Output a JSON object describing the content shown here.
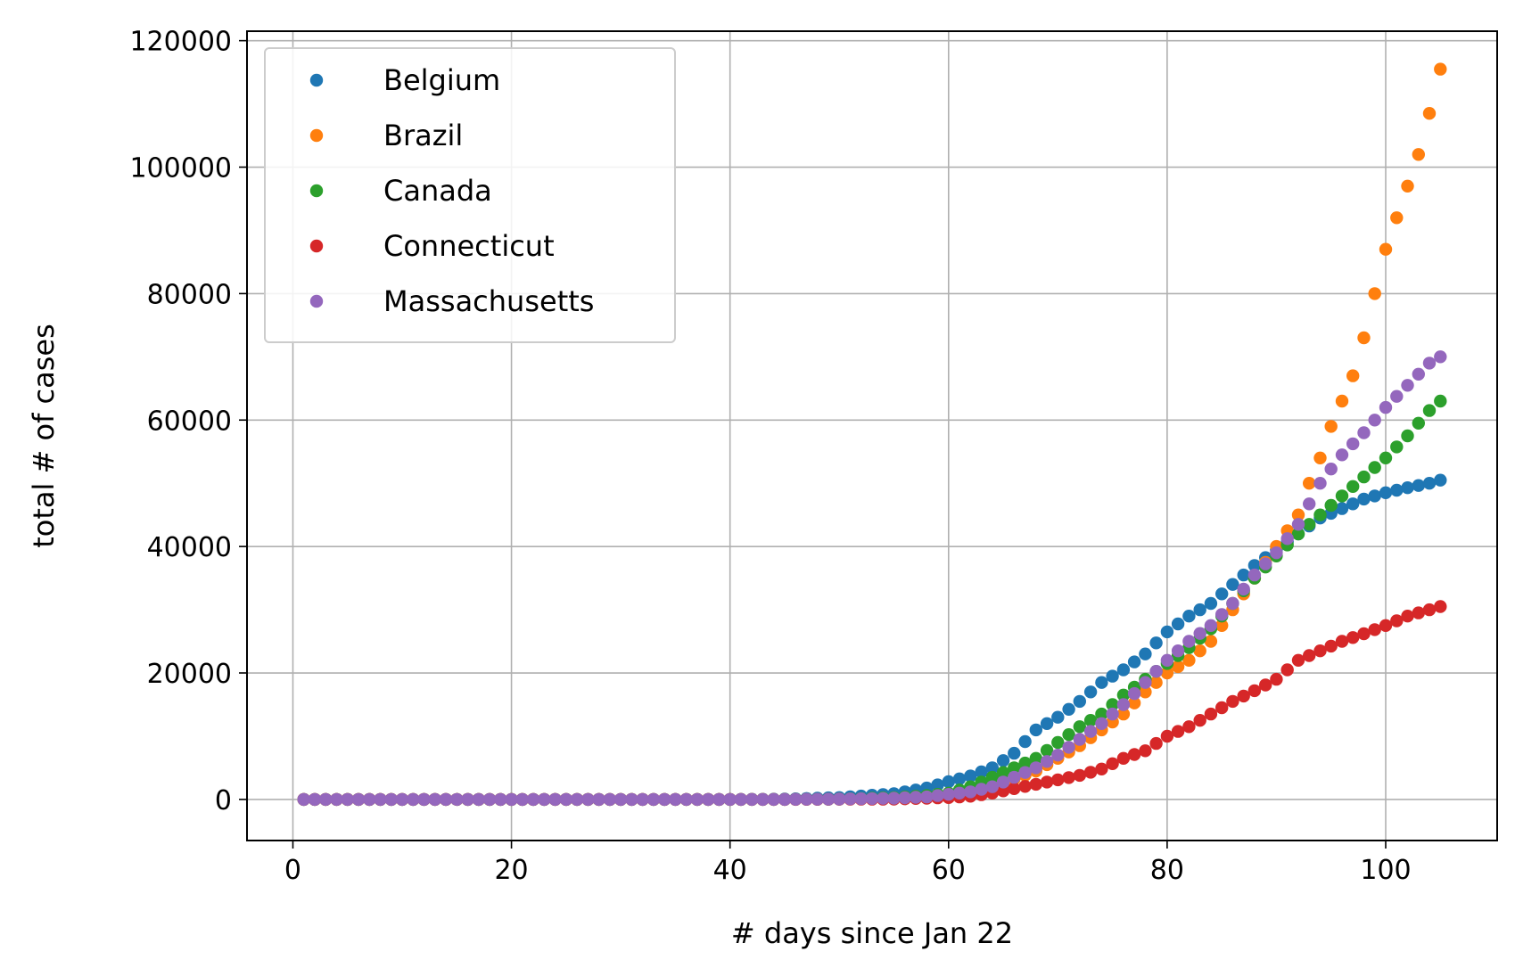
{
  "chart_data": {
    "type": "scatter",
    "xlabel": "# days since Jan 22",
    "ylabel": "total # of cases",
    "xlim": [
      -4.2,
      110.2
    ],
    "ylim": [
      -6500,
      121500
    ],
    "xticks": [
      0,
      20,
      40,
      60,
      80,
      100
    ],
    "yticks": [
      0,
      20000,
      40000,
      60000,
      80000,
      100000,
      120000
    ],
    "grid": true,
    "legend_position": "top-left",
    "series": [
      {
        "name": "Belgium",
        "color": "#1f77b4",
        "anchors": [
          [
            1,
            0
          ],
          [
            40,
            0
          ],
          [
            45,
            50
          ],
          [
            50,
            300
          ],
          [
            55,
            900
          ],
          [
            58,
            1800
          ],
          [
            60,
            2800
          ],
          [
            62,
            3700
          ],
          [
            64,
            5000
          ],
          [
            66,
            7300
          ],
          [
            68,
            11000
          ],
          [
            70,
            13000
          ],
          [
            72,
            15500
          ],
          [
            74,
            18500
          ],
          [
            76,
            20500
          ],
          [
            78,
            23000
          ],
          [
            80,
            26500
          ],
          [
            82,
            29000
          ],
          [
            84,
            31000
          ],
          [
            86,
            34000
          ],
          [
            88,
            37000
          ],
          [
            90,
            39500
          ],
          [
            92,
            42000
          ],
          [
            94,
            44500
          ],
          [
            96,
            46000
          ],
          [
            98,
            47500
          ],
          [
            100,
            48500
          ],
          [
            102,
            49300
          ],
          [
            104,
            50000
          ],
          [
            105,
            50500
          ]
        ]
      },
      {
        "name": "Brazil",
        "color": "#ff7f0e",
        "anchors": [
          [
            1,
            0
          ],
          [
            45,
            0
          ],
          [
            50,
            50
          ],
          [
            55,
            200
          ],
          [
            58,
            500
          ],
          [
            60,
            800
          ],
          [
            62,
            1200
          ],
          [
            64,
            2000
          ],
          [
            66,
            3200
          ],
          [
            68,
            4500
          ],
          [
            70,
            6500
          ],
          [
            72,
            8500
          ],
          [
            74,
            11000
          ],
          [
            76,
            13500
          ],
          [
            78,
            17000
          ],
          [
            80,
            20000
          ],
          [
            82,
            22000
          ],
          [
            84,
            25000
          ],
          [
            86,
            30000
          ],
          [
            88,
            35000
          ],
          [
            90,
            40000
          ],
          [
            92,
            45000
          ],
          [
            93,
            50000
          ],
          [
            94,
            54000
          ],
          [
            95,
            59000
          ],
          [
            96,
            63000
          ],
          [
            97,
            67000
          ],
          [
            98,
            73000
          ],
          [
            99,
            80000
          ],
          [
            100,
            87000
          ],
          [
            101,
            92000
          ],
          [
            102,
            97000
          ],
          [
            103,
            102000
          ],
          [
            104,
            108500
          ],
          [
            105,
            115500
          ]
        ]
      },
      {
        "name": "Canada",
        "color": "#2ca02c",
        "anchors": [
          [
            1,
            0
          ],
          [
            45,
            0
          ],
          [
            50,
            50
          ],
          [
            55,
            300
          ],
          [
            58,
            600
          ],
          [
            60,
            1000
          ],
          [
            62,
            2000
          ],
          [
            64,
            3500
          ],
          [
            66,
            5000
          ],
          [
            68,
            6500
          ],
          [
            70,
            9000
          ],
          [
            72,
            11500
          ],
          [
            74,
            13500
          ],
          [
            76,
            16500
          ],
          [
            78,
            19000
          ],
          [
            80,
            21500
          ],
          [
            82,
            24000
          ],
          [
            84,
            27000
          ],
          [
            86,
            31000
          ],
          [
            88,
            35000
          ],
          [
            90,
            38500
          ],
          [
            92,
            42000
          ],
          [
            94,
            45000
          ],
          [
            96,
            48000
          ],
          [
            98,
            51000
          ],
          [
            100,
            54000
          ],
          [
            102,
            57500
          ],
          [
            104,
            61500
          ],
          [
            105,
            63000
          ]
        ]
      },
      {
        "name": "Connecticut",
        "color": "#d62728",
        "anchors": [
          [
            1,
            0
          ],
          [
            45,
            0
          ],
          [
            55,
            50
          ],
          [
            60,
            300
          ],
          [
            62,
            500
          ],
          [
            64,
            1000
          ],
          [
            66,
            1700
          ],
          [
            68,
            2400
          ],
          [
            70,
            3100
          ],
          [
            72,
            3800
          ],
          [
            74,
            4800
          ],
          [
            76,
            6500
          ],
          [
            78,
            7700
          ],
          [
            80,
            10000
          ],
          [
            82,
            11500
          ],
          [
            84,
            13500
          ],
          [
            86,
            15500
          ],
          [
            88,
            17200
          ],
          [
            90,
            19000
          ],
          [
            92,
            22000
          ],
          [
            94,
            23500
          ],
          [
            96,
            25000
          ],
          [
            98,
            26200
          ],
          [
            100,
            27500
          ],
          [
            102,
            29000
          ],
          [
            104,
            30000
          ],
          [
            105,
            30500
          ]
        ]
      },
      {
        "name": "Massachusetts",
        "color": "#9467bd",
        "anchors": [
          [
            1,
            0
          ],
          [
            45,
            0
          ],
          [
            50,
            50
          ],
          [
            55,
            200
          ],
          [
            58,
            400
          ],
          [
            60,
            800
          ],
          [
            62,
            1200
          ],
          [
            64,
            2000
          ],
          [
            66,
            3500
          ],
          [
            68,
            5000
          ],
          [
            70,
            7000
          ],
          [
            72,
            9500
          ],
          [
            74,
            12000
          ],
          [
            76,
            15000
          ],
          [
            78,
            18500
          ],
          [
            80,
            22000
          ],
          [
            82,
            25000
          ],
          [
            84,
            27500
          ],
          [
            86,
            31000
          ],
          [
            88,
            35500
          ],
          [
            90,
            39000
          ],
          [
            92,
            43500
          ],
          [
            94,
            50000
          ],
          [
            96,
            54500
          ],
          [
            98,
            58000
          ],
          [
            100,
            62000
          ],
          [
            102,
            65500
          ],
          [
            104,
            69000
          ],
          [
            105,
            70000
          ]
        ]
      }
    ]
  }
}
